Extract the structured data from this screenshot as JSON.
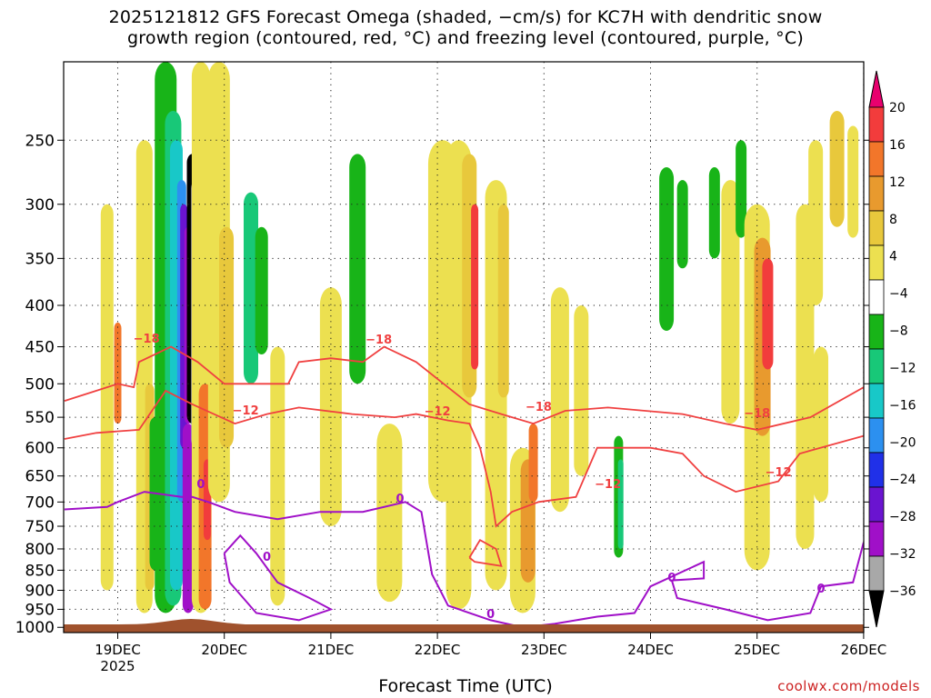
{
  "title_line1": "2025121812 GFS Forecast Omega (shaded, −cm/s) for KC7H with dendritic snow",
  "title_line2": "growth region (contoured, red, °C) and freezing level (contoured, purple, °C)",
  "credit": "coolwx.com/models",
  "chart_data": {
    "type": "heatmap",
    "xlabel": "Forecast Time (UTC)",
    "x_ticks": [
      "19DEC",
      "20DEC",
      "21DEC",
      "22DEC",
      "23DEC",
      "24DEC",
      "25DEC",
      "26DEC"
    ],
    "x_year_label": "2025",
    "y_ticks": [
      250,
      300,
      350,
      400,
      450,
      500,
      550,
      600,
      650,
      700,
      750,
      800,
      850,
      900,
      950,
      1000
    ],
    "y_scale": "log-pressure",
    "ylim": [
      1015,
      200
    ],
    "colorbar": {
      "labels": [
        "20",
        "16",
        "12",
        "8",
        "4",
        "−4",
        "−8",
        "−12",
        "−16",
        "−20",
        "−24",
        "−28",
        "−32",
        "−36"
      ],
      "colors": [
        "#e8006e",
        "#f23c3c",
        "#f2762a",
        "#e89a2e",
        "#e8c83c",
        "#ece050",
        "#ffffff",
        "#18b418",
        "#18c878",
        "#18c8c8",
        "#2c90f0",
        "#2030e8",
        "#6a14d0",
        "#a010c8",
        "#a8a8a8",
        "#000000"
      ]
    },
    "contours": {
      "dgz_red_labels": [
        "−18",
        "−12",
        "−12",
        "−18",
        "−18",
        "−12",
        "−18",
        "−12"
      ],
      "freezing_purple_labels": [
        "0",
        "0",
        "0",
        "0",
        "0",
        "0"
      ]
    },
    "grid": true
  }
}
